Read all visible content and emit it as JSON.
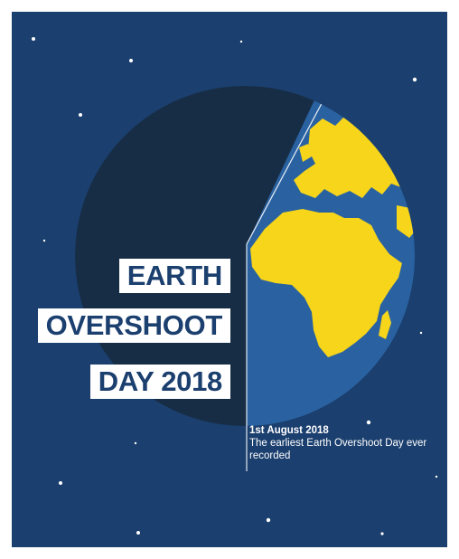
{
  "poster": {
    "title_lines": [
      "EARTH",
      "OVERSHOOT",
      "DAY 2018"
    ],
    "caption_date": "1st August 2018",
    "caption_text": "The earliest Earth Overshoot Day ever recorded"
  },
  "colors": {
    "background": "#1b3f6e",
    "globe_dark": "#172d45",
    "ocean": "#2a62a1",
    "land": "#f7d51a",
    "title_text": "#1b3f6e",
    "caption_text": "#ffffff"
  },
  "icons": [
    "earth-globe-illustration",
    "star-icon"
  ]
}
